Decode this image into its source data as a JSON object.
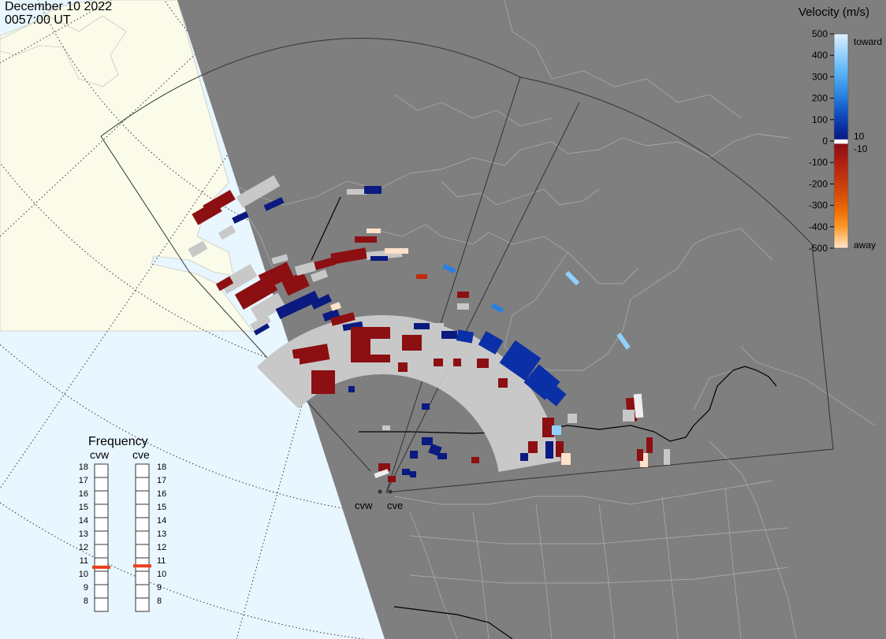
{
  "header": {
    "date": "December 10 2022",
    "time": "0057:00 UT"
  },
  "colorbar": {
    "title": "Velocity (m/s)",
    "ticks": [
      "500",
      "400",
      "300",
      "200",
      "100",
      "0",
      "-100",
      "-200",
      "-300",
      "-400",
      "-500"
    ],
    "label_toward": "toward",
    "label_away": "away",
    "threshold_pos": "10",
    "threshold_neg": "-10",
    "colors_top_to_bottom": [
      "#dff0ff",
      "#9fd6ff",
      "#5ab4f5",
      "#2a86e0",
      "#1455c8",
      "#0a2f9e",
      "#0a1a80",
      "#8a0f12",
      "#a81a12",
      "#c03010",
      "#d44a0a",
      "#ee6a05",
      "#ff9a2a",
      "#ffc98a",
      "#ffe6cc"
    ]
  },
  "frequency": {
    "title": "Frequency",
    "radars": [
      {
        "name": "cvw",
        "value_mhz": 10.8
      },
      {
        "name": "cve",
        "value_mhz": 10.9
      }
    ],
    "scale": [
      "18",
      "17",
      "16",
      "15",
      "14",
      "13",
      "12",
      "11",
      "10",
      "9",
      "8"
    ]
  },
  "map": {
    "colors": {
      "night": "#7f7f7f",
      "ocean_day": "#e8f6ff",
      "land_day": "#fbfbea",
      "border": "#000000",
      "outline": "#a6a6a6",
      "ground_scatter": "#c8c8c8"
    },
    "radar_labels": [
      "cvw",
      "cve"
    ]
  }
}
